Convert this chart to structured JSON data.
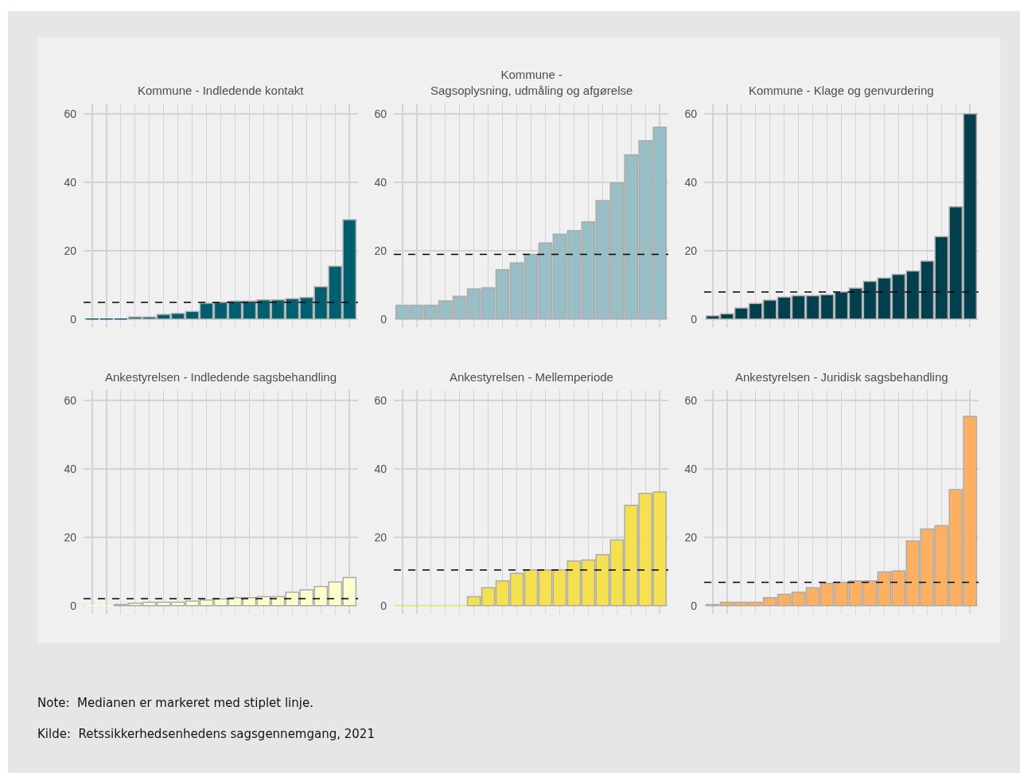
{
  "chart_data": [
    {
      "type": "bar",
      "title": "Kommune - Indledende kontakt",
      "categories": [
        null,
        null,
        null,
        null,
        null,
        null,
        null,
        null,
        null,
        null,
        null,
        null,
        null,
        null,
        null,
        null,
        null,
        null,
        null
      ],
      "color": "#005f6e",
      "values": [
        0,
        0,
        0,
        0.6,
        0.6,
        1.3,
        1.6,
        2.2,
        4.6,
        4.9,
        5.2,
        5.2,
        5.6,
        5.6,
        5.9,
        6.3,
        9.4,
        15.4,
        29
      ],
      "ylim": [
        -1,
        63
      ],
      "yticks": [
        0,
        20,
        40,
        60
      ],
      "grid": true,
      "tick_labels": "y",
      "ref_lines": [
        {
          "axis": "y",
          "value": 4.9,
          "color": "#000000",
          "line_style": "dashed"
        }
      ]
    },
    {
      "type": "bar",
      "title": "Kommune -\nSagsoplysning, udmåling og afgørelse",
      "categories": [
        null,
        null,
        null,
        null,
        null,
        null,
        null,
        null,
        null,
        null,
        null,
        null,
        null,
        null,
        null,
        null,
        null,
        null,
        null
      ],
      "color": "#98bec6",
      "values": [
        4.0,
        4.0,
        4.0,
        5.3,
        6.6,
        8.8,
        9.1,
        14.4,
        16.4,
        18.9,
        22.2,
        24.8,
        25.8,
        28.4,
        34.6,
        39.8,
        48.0,
        52.1,
        56.1
      ],
      "ylim": [
        -1,
        63
      ],
      "yticks": [
        0,
        20,
        40,
        60
      ],
      "grid": true,
      "tick_labels": "y",
      "ref_lines": [
        {
          "axis": "y",
          "value": 18.9,
          "color": "#000000",
          "line_style": "dashed"
        }
      ]
    },
    {
      "type": "bar",
      "title": "Kommune - Klage og genvurdering",
      "categories": [
        null,
        null,
        null,
        null,
        null,
        null,
        null,
        null,
        null,
        null,
        null,
        null,
        null,
        null,
        null,
        null,
        null,
        null,
        null
      ],
      "color": "#01404c",
      "values": [
        0.9,
        1.5,
        3.2,
        4.5,
        5.5,
        6.4,
        6.8,
        6.8,
        7.1,
        7.9,
        9.0,
        11.0,
        12.0,
        13.0,
        14.0,
        16.9,
        24.1,
        32.8,
        60
      ],
      "ylim": [
        -1,
        63
      ],
      "yticks": [
        0,
        20,
        40,
        60
      ],
      "grid": true,
      "tick_labels": "y",
      "ref_lines": [
        {
          "axis": "y",
          "value": 7.9,
          "color": "#000000",
          "line_style": "dashed"
        }
      ]
    },
    {
      "type": "bar",
      "title": "Ankestyrelsen - Indledende sagsbehandling",
      "categories": [
        null,
        null,
        null,
        null,
        null,
        null,
        null,
        null,
        null,
        null,
        null,
        null,
        null,
        null,
        null,
        null,
        null,
        null,
        null
      ],
      "color": "#ffffcc",
      "values": [
        0,
        0,
        0.3,
        0.7,
        1.0,
        1.0,
        1.0,
        1.3,
        1.6,
        1.9,
        2.3,
        2.3,
        2.6,
        2.6,
        3.9,
        4.6,
        5.6,
        6.9,
        8.2
      ],
      "ylim": [
        -1,
        63
      ],
      "yticks": [
        0,
        20,
        40,
        60
      ],
      "grid": true,
      "tick_labels": "y",
      "ref_lines": [
        {
          "axis": "y",
          "value": 2.0,
          "color": "#000000",
          "line_style": "dashed"
        }
      ]
    },
    {
      "type": "bar",
      "title": "Ankestyrelsen - Mellemperiode",
      "categories": [
        null,
        null,
        null,
        null,
        null,
        null,
        null,
        null,
        null,
        null,
        null,
        null,
        null,
        null,
        null,
        null,
        null,
        null,
        null
      ],
      "color": "#f5e050",
      "values": [
        0,
        0,
        0,
        0,
        0,
        2.6,
        5.2,
        7.2,
        9.4,
        10.4,
        10.4,
        10.4,
        13.0,
        13.3,
        14.9,
        19.2,
        29.3,
        32.8,
        33.2
      ],
      "ylim": [
        -1,
        63
      ],
      "yticks": [
        0,
        20,
        40,
        60
      ],
      "grid": true,
      "tick_labels": "y",
      "ref_lines": [
        {
          "axis": "y",
          "value": 10.4,
          "color": "#000000",
          "line_style": "dashed"
        }
      ]
    },
    {
      "type": "bar",
      "title": "Ankestyrelsen - Juridisk sagsbehandling",
      "categories": [
        null,
        null,
        null,
        null,
        null,
        null,
        null,
        null,
        null,
        null,
        null,
        null,
        null,
        null,
        null,
        null,
        null,
        null,
        null
      ],
      "color": "#fdb060",
      "values": [
        0.3,
        1.0,
        1.0,
        1.0,
        2.3,
        3.3,
        3.9,
        5.2,
        6.5,
        6.8,
        7.2,
        7.2,
        9.8,
        10.1,
        18.9,
        22.4,
        23.4,
        33.9,
        55.3
      ],
      "ylim": [
        -1,
        63
      ],
      "yticks": [
        0,
        20,
        40,
        60
      ],
      "grid": true,
      "tick_labels": "y",
      "ref_lines": [
        {
          "axis": "y",
          "value": 6.8,
          "color": "#000000",
          "line_style": "dashed"
        }
      ],
      "annotations": [
        "Note:  Medianen er markeret med stiplet linje.",
        "Kilde:  Retssikkerhedsenhedens sagsgennemgang, 2021"
      ]
    }
  ]
}
